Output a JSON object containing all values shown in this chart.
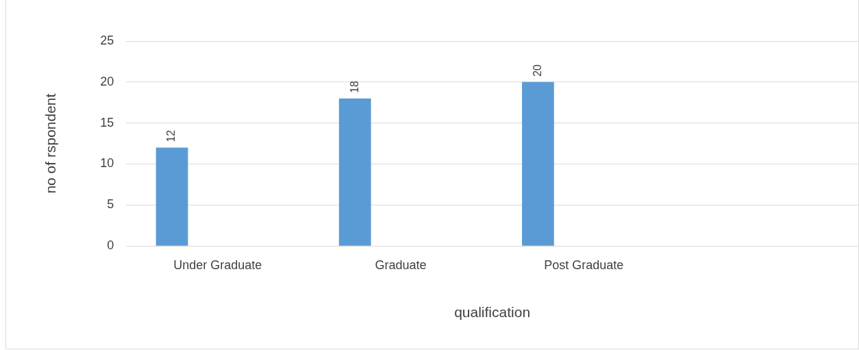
{
  "chart_data": {
    "type": "bar",
    "xlabel": "qualification",
    "ylabel": "no of rspondent",
    "categories": [
      "Under Graduate",
      "Graduate",
      "Post Graduate",
      null
    ],
    "series": [
      {
        "color": "#5b9bd5",
        "values": [
          12,
          18,
          20,
          null
        ]
      }
    ],
    "ylim": [
      0,
      25
    ],
    "yticks": [
      0,
      5,
      10,
      15,
      20,
      25
    ],
    "grid": "y",
    "data_labels": true,
    "legend": false
  }
}
